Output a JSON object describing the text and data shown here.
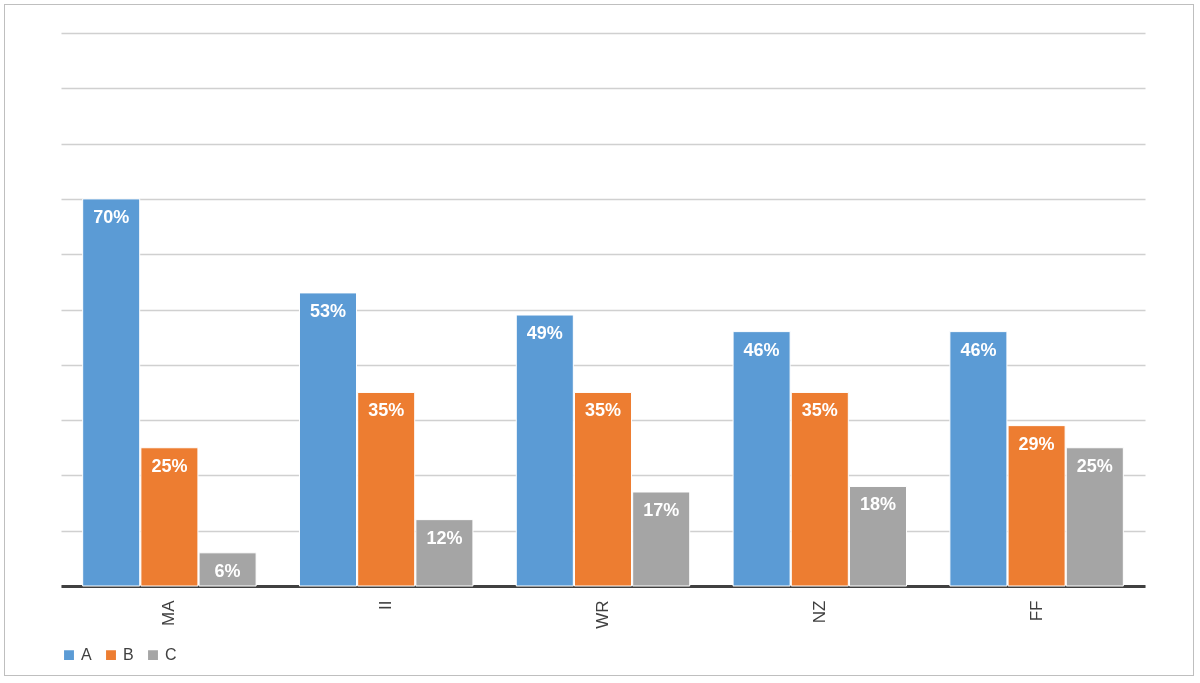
{
  "chart_data": {
    "type": "bar",
    "categories": [
      "MA",
      "II",
      "WR",
      "NZ",
      "FF"
    ],
    "series": [
      {
        "name": "A",
        "color": "#5b9bd5",
        "values": [
          70,
          53,
          49,
          46,
          46
        ],
        "value_labels": [
          "70%",
          "53%",
          "49%",
          "46%",
          "46%"
        ]
      },
      {
        "name": "B",
        "color": "#ed7d31",
        "values": [
          25,
          35,
          35,
          35,
          29
        ],
        "value_labels": [
          "25%",
          "35%",
          "35%",
          "35%",
          "29%"
        ]
      },
      {
        "name": "C",
        "color": "#a5a5a5",
        "values": [
          6,
          12,
          17,
          18,
          25
        ],
        "value_labels": [
          "6%",
          "12%",
          "17%",
          "18%",
          "25%"
        ]
      }
    ],
    "ylim": [
      0,
      100
    ],
    "yticks": [
      {
        "value": 0,
        "label": null
      },
      {
        "value": 10,
        "label": null
      },
      {
        "value": 20,
        "label": null
      },
      {
        "value": 30,
        "label": null
      },
      {
        "value": 40,
        "label": null
      },
      {
        "value": 50,
        "label": null
      },
      {
        "value": 60,
        "label": null
      },
      {
        "value": 70,
        "label": null
      },
      {
        "value": 80,
        "label": null
      },
      {
        "value": 90,
        "label": null
      },
      {
        "value": 100,
        "label": null
      }
    ],
    "tick_labels": "x",
    "grid": "y",
    "legend": "bottom"
  }
}
